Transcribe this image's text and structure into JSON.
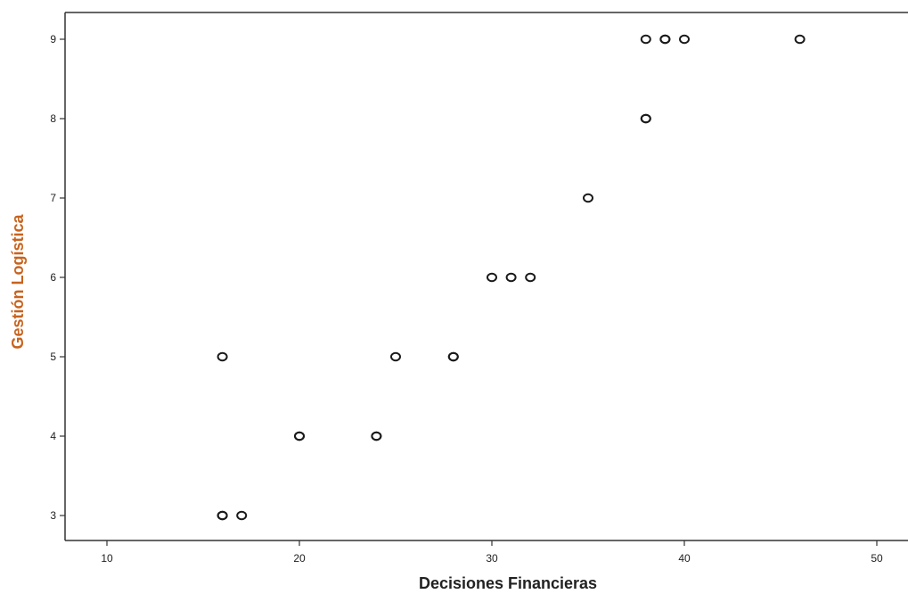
{
  "chart_data": {
    "type": "scatter",
    "title": "",
    "xlabel": "Decisiones Financieras",
    "ylabel": "Gestión Logística",
    "xlim": [
      8,
      51
    ],
    "ylim": [
      2.7,
      9.35
    ],
    "xticks": [
      10,
      20,
      30,
      40,
      50
    ],
    "yticks": [
      3,
      4,
      5,
      6,
      7,
      8,
      9
    ],
    "grid": false,
    "points": [
      {
        "x": 16,
        "y": 3
      },
      {
        "x": 16,
        "y": 3
      },
      {
        "x": 17,
        "y": 3
      },
      {
        "x": 20,
        "y": 4
      },
      {
        "x": 20,
        "y": 4
      },
      {
        "x": 24,
        "y": 4
      },
      {
        "x": 24,
        "y": 4
      },
      {
        "x": 16,
        "y": 5
      },
      {
        "x": 25,
        "y": 5
      },
      {
        "x": 28,
        "y": 5
      },
      {
        "x": 28,
        "y": 5
      },
      {
        "x": 30,
        "y": 6
      },
      {
        "x": 31,
        "y": 6
      },
      {
        "x": 32,
        "y": 6
      },
      {
        "x": 35,
        "y": 7
      },
      {
        "x": 38,
        "y": 8
      },
      {
        "x": 38,
        "y": 8
      },
      {
        "x": 38,
        "y": 9
      },
      {
        "x": 39,
        "y": 9
      },
      {
        "x": 39,
        "y": 9
      },
      {
        "x": 40,
        "y": 9
      },
      {
        "x": 46,
        "y": 9
      }
    ],
    "colors": {
      "xlabel": "#222222",
      "ylabel": "#c8631e",
      "marker": "#1a1a1a",
      "axis": "#333333"
    }
  }
}
